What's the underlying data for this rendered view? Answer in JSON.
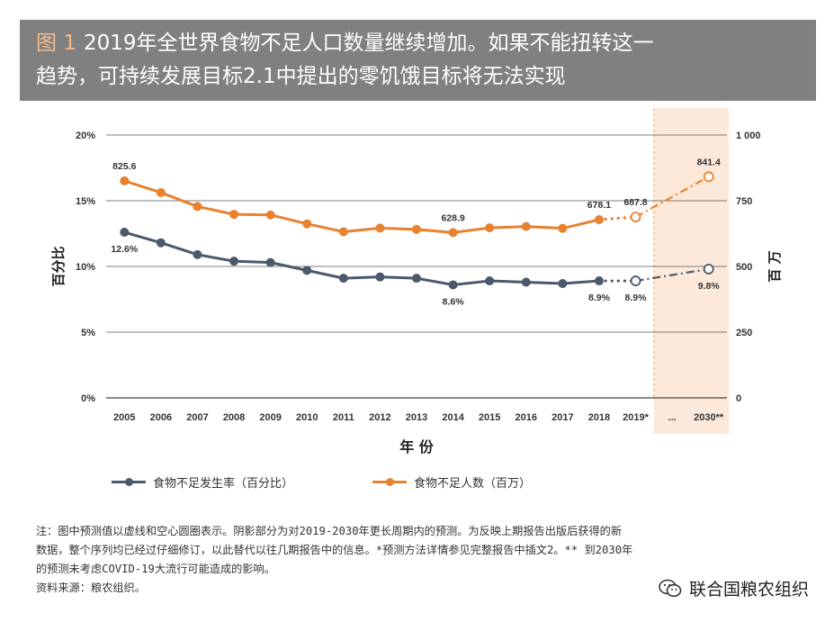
{
  "title": {
    "figure_label": "图 1",
    "line1": "2019年全世界食物不足人口数量继续增加。如果不能扭转这一",
    "line2": "趋势，可持续发展目标2.1中提出的零饥饿目标将无法实现"
  },
  "chart_data": {
    "type": "line",
    "xlabel": "年 份",
    "ylabel_left": "百分比",
    "ylabel_right": "百 万",
    "categories": [
      "2005",
      "2006",
      "2007",
      "2008",
      "2009",
      "2010",
      "2011",
      "2012",
      "2013",
      "2014",
      "2015",
      "2016",
      "2017",
      "2018",
      "2019*",
      "...",
      "2030**"
    ],
    "y_left": {
      "ticks": [
        "0%",
        "5%",
        "10%",
        "15%",
        "20%"
      ],
      "values": [
        0,
        5,
        10,
        15,
        20
      ],
      "range": [
        0,
        20
      ]
    },
    "y_right": {
      "ticks": [
        "0",
        "250",
        "500",
        "750",
        "1 000"
      ],
      "values": [
        0,
        250,
        500,
        750,
        1000
      ],
      "range": [
        0,
        1000
      ]
    },
    "shaded_region": {
      "from": "2019*",
      "to": "2030**",
      "color": "#fde9d9"
    },
    "series": [
      {
        "name": "食物不足发生率（百分比）",
        "axis": "left",
        "color": "#4a5a6a",
        "values": [
          12.6,
          11.8,
          10.9,
          10.4,
          10.3,
          9.7,
          9.1,
          9.2,
          9.1,
          8.6,
          8.9,
          8.8,
          8.7,
          8.9,
          8.9,
          null,
          9.8
        ],
        "projection_from_index": 13,
        "labels": [
          {
            "index": 0,
            "text": "12.6%",
            "pos": "below"
          },
          {
            "index": 9,
            "text": "8.6%",
            "pos": "below"
          },
          {
            "index": 13,
            "text": "8.9%",
            "pos": "below"
          },
          {
            "index": 14,
            "text": "8.9%",
            "pos": "below"
          },
          {
            "index": 16,
            "text": "9.8%",
            "pos": "below"
          }
        ]
      },
      {
        "name": "食物不足人数（百万）",
        "axis": "right",
        "color": "#e8822f",
        "values": [
          825.6,
          781,
          728,
          698,
          696,
          662,
          632,
          646,
          641,
          628.9,
          647,
          652,
          645,
          678.1,
          687.8,
          null,
          841.4
        ],
        "projection_from_index": 13,
        "labels": [
          {
            "index": 0,
            "text": "825.6",
            "pos": "above"
          },
          {
            "index": 9,
            "text": "628.9",
            "pos": "above"
          },
          {
            "index": 13,
            "text": "678.1",
            "pos": "above"
          },
          {
            "index": 14,
            "text": "687.8",
            "pos": "above"
          },
          {
            "index": 16,
            "text": "841.4",
            "pos": "above"
          }
        ]
      }
    ],
    "legend_position": "bottom"
  },
  "notes": {
    "line1": "注：图中预测值以虚线和空心圆圈表示。阴影部分为对2019-2030年更长周期内的预测。为反映上期报告出版后获得的新",
    "line2": "数据，整个序列均已经过仔细修订，以此替代以往几期报告中的信息。*预测方法详情参见完整报告中插文2。** 到2030年",
    "line3": "的预测未考虑COVID-19大流行可能造成的影响。",
    "source": "资料来源：粮农组织。"
  },
  "watermark": {
    "text": "联合国粮农组织",
    "icon": "wechat-icon"
  }
}
